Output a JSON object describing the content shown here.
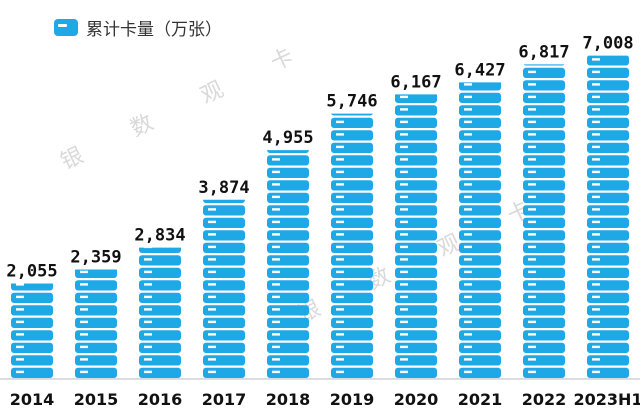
{
  "chart_data": {
    "type": "bar",
    "legend": "累计卡量（万张）",
    "categories": [
      "2014",
      "2015",
      "2016",
      "2017",
      "2018",
      "2019",
      "2020",
      "2021",
      "2022",
      "2023H1"
    ],
    "values": [
      2055,
      2359,
      2834,
      3874,
      4955,
      5746,
      6167,
      6427,
      6817,
      7008
    ],
    "value_labels": [
      "2,055",
      "2,359",
      "2,834",
      "3,874",
      "4,955",
      "5,746",
      "6,167",
      "6,427",
      "6,817",
      "7,008"
    ],
    "ylim": [
      0,
      8000
    ],
    "grid": false,
    "legend_position": "top-left"
  },
  "watermark": [
    "银",
    "数",
    "观",
    "卡"
  ],
  "colors": {
    "bar": "#1fa8e6",
    "stripe": "#ffffff",
    "text": "#111111",
    "axis": "#bbbbbb",
    "watermark": "#d9d9d9"
  }
}
